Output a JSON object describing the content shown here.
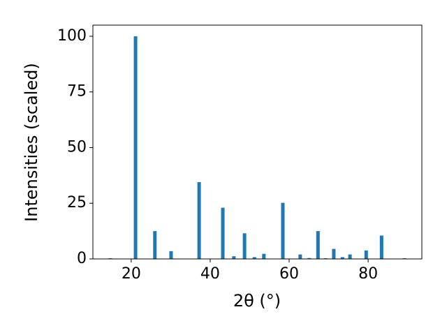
{
  "chart_data": {
    "type": "bar",
    "x_label": "2θ (°)",
    "y_label": "Intensities (scaled)",
    "x": [
      14.7,
      21.1,
      26.0,
      30.1,
      37.2,
      43.2,
      46.0,
      48.7,
      51.2,
      53.6,
      58.4,
      62.8,
      65.1,
      67.3,
      69.2,
      71.3,
      73.5,
      75.4,
      79.5,
      83.4,
      89.2
    ],
    "values": [
      0.3,
      100,
      12.5,
      3.5,
      34.5,
      23,
      1.2,
      11.5,
      0.8,
      2.3,
      25.2,
      2,
      0.4,
      12.5,
      0.3,
      4.5,
      0.8,
      2,
      3.8,
      10.5,
      0.3
    ],
    "color": "#1f77b4",
    "xlim": [
      10.3,
      93.6
    ],
    "xticks": [
      20,
      40,
      60,
      80
    ],
    "ylim": [
      0,
      105
    ],
    "yticks": [
      0,
      25,
      50,
      75,
      100
    ]
  }
}
